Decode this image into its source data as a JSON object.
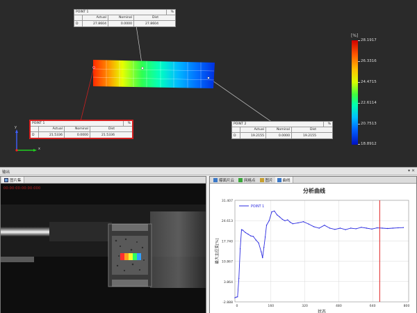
{
  "viewport": {
    "point_tables": [
      {
        "id": "point-1-top",
        "title": "POINT 1",
        "headers": [
          "",
          "Actual",
          "Nominal",
          "Dist"
        ],
        "row": [
          "D",
          "27.8604",
          "0.0000",
          "27.8604"
        ],
        "pct": "%",
        "style": "plain"
      },
      {
        "id": "point-1-left",
        "title": "POINT 1",
        "headers": [
          "",
          "Actual",
          "Nominal",
          "Dist"
        ],
        "row": [
          "D",
          "21.5336",
          "0.0000",
          "21.5336"
        ],
        "pct": "%",
        "style": "red"
      },
      {
        "id": "point-2",
        "title": "POINT 2",
        "headers": [
          "",
          "Actual",
          "Nominal",
          "Dist"
        ],
        "row": [
          "D",
          "19.2155",
          "0.0000",
          "19.2155"
        ],
        "pct": "%",
        "style": "plain"
      }
    ],
    "colorbar": {
      "unit": "[%]",
      "labels": [
        "28.1917",
        "26.3316",
        "24.4715",
        "22.6114",
        "20.7513",
        "18.8912"
      ]
    },
    "axes": {
      "x": "x",
      "y": "y"
    }
  },
  "bottom": {
    "title": "输出",
    "controls": "▾ ✕",
    "camera": {
      "tab_label": "图片集",
      "timestamp": "00:00:00:00:00:000"
    },
    "chart_tabs": [
      {
        "label": "曝面片云",
        "icon": "cloud-icon",
        "color": "#3a78c8"
      },
      {
        "label": "网格点",
        "icon": "grid-icon",
        "color": "#3aa83a"
      },
      {
        "label": "图片",
        "icon": "image-icon",
        "color": "#c8a030"
      },
      {
        "label": "曲线",
        "icon": "curve-icon",
        "color": "#3a78c8"
      }
    ]
  },
  "chart_data": {
    "type": "line",
    "title": "分析曲线",
    "xlabel": "状态",
    "ylabel": "最大主应变[%]",
    "xlim": [
      0,
      660
    ],
    "ylim": [
      -2.888,
      31.407
    ],
    "xticks": [
      "0",
      "160",
      "320",
      "480",
      "640",
      "800"
    ],
    "yticks": [
      "-2.888",
      "3.864",
      "10.867",
      "17.740",
      "24.613",
      "31.407"
    ],
    "grid": true,
    "legend_position": "top-left",
    "marker_x": 550,
    "marker_color": "#e02020",
    "series": [
      {
        "name": "POINT 1",
        "color": "#2a2ae0",
        "x": [
          0,
          5,
          10,
          15,
          20,
          25,
          30,
          40,
          50,
          60,
          70,
          80,
          90,
          100,
          105,
          110,
          115,
          120,
          130,
          140,
          150,
          160,
          170,
          180,
          190,
          200,
          210,
          220,
          240,
          260,
          280,
          300,
          320,
          340,
          360,
          380,
          400,
          420,
          440,
          460,
          480,
          500,
          520,
          540,
          560,
          580,
          600,
          620,
          640
        ],
        "y": [
          -1.5,
          -1.3,
          -1.2,
          5.0,
          15.0,
          21.5,
          21.3,
          20.5,
          20.0,
          19.4,
          19.2,
          18.0,
          17.0,
          14.0,
          12.0,
          15.5,
          19.0,
          23.0,
          24.5,
          27.5,
          27.8,
          26.5,
          25.8,
          25.0,
          24.5,
          24.8,
          24.0,
          23.5,
          23.8,
          24.2,
          23.4,
          22.5,
          22.0,
          23.0,
          22.0,
          21.6,
          22.0,
          21.5,
          22.0,
          21.8,
          22.3,
          22.0,
          21.7,
          22.1,
          22.0,
          21.9,
          22.0,
          22.1,
          22.2
        ]
      }
    ]
  }
}
